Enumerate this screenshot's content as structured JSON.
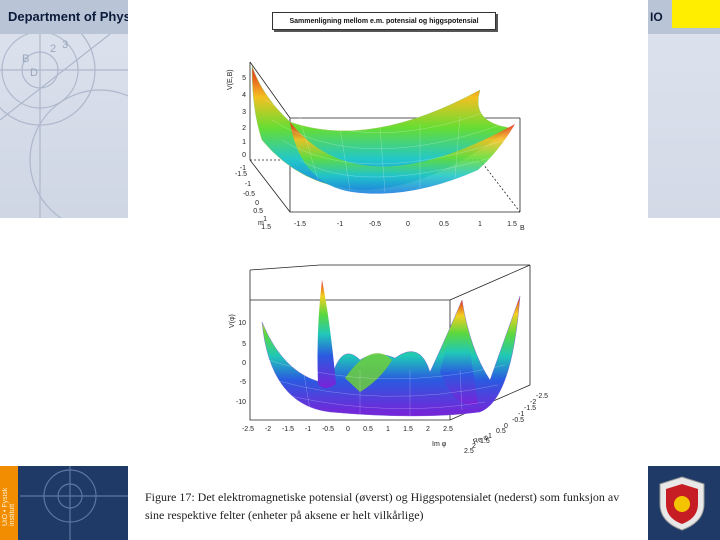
{
  "slide": {
    "header_title": "Department of Phys",
    "header_suffix": "IO",
    "side_text": "UiO • Fysisk institutt"
  },
  "figure": {
    "plot_title": "Sammenligning mellom e.m. potensial og higgspotensial",
    "top_plot": {
      "zlabel": "V(E,B)",
      "xlabel": "B",
      "ylabel": "m",
      "z_ticks": [
        "5",
        "4",
        "3",
        "2",
        "1",
        "0",
        "-1"
      ],
      "x_ticks": [
        "-1.5",
        "-1",
        "-0.5",
        "0",
        "0.5",
        "1",
        "1.5"
      ],
      "y_ticks": [
        "-1.5",
        "-1",
        "-0.5",
        "0",
        "0.5",
        "1",
        "1.5"
      ]
    },
    "bottom_plot": {
      "zlabel": "V(φ)",
      "xlabel": "Im φ",
      "ylabel": "Re φ",
      "z_ticks": [
        "10",
        "5",
        "0",
        "-5",
        "-10"
      ],
      "x_ticks": [
        "-2.5",
        "-2",
        "-1.5",
        "-1",
        "-0.5",
        "0",
        "0.5",
        "1",
        "1.5",
        "2",
        "2.5"
      ],
      "y_ticks": [
        "-2.5",
        "-2",
        "-1.5",
        "-1",
        "-0.5",
        "0",
        "0.5",
        "1",
        "1.5",
        "2",
        "2.5"
      ]
    },
    "caption": "Figure 17: Det elektromagnetiske potensial (øverst) og Higgspotensialet (nederst) som funksjon av sine respektive felter (enheter på aksene er helt vilkårlige)"
  },
  "colors": {
    "header_bg": "#b9c4d6",
    "accent_yellow": "#ffee00",
    "band_blue": "#1f3a66",
    "accent_orange": "#f28c00"
  }
}
